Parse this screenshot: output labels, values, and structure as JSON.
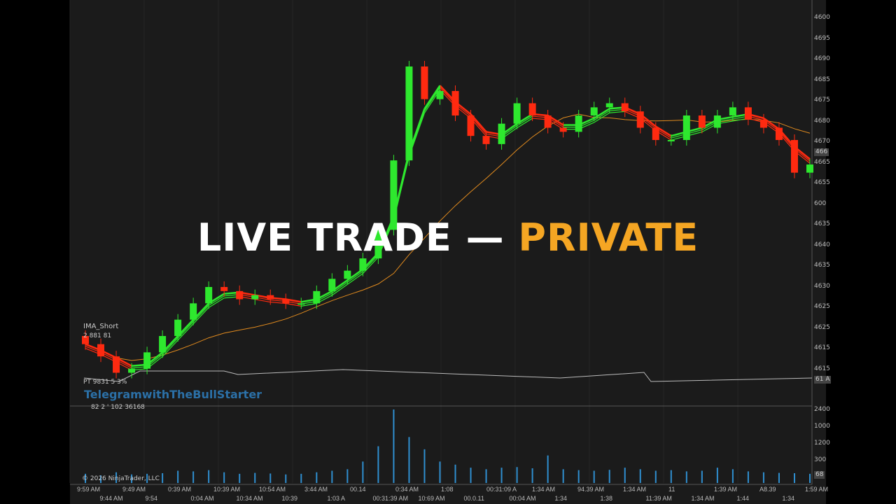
{
  "overlay": {
    "title_main": "LIVE TRADE —",
    "title_accent": "PRIVATE",
    "accent_color": "#f5a623"
  },
  "indicator_label": "IMA_Short",
  "indicator_value": "2 881 81",
  "info_line1": "PT 9831 5 3%",
  "info_line2": "82 2 ' 102 36168",
  "watermark": "TelegramwithTheBullStarter",
  "copyright": "© 2026 NinjaTrader, LLC",
  "colors": {
    "up": "#2ee82e",
    "down": "#ff2a10",
    "slow_ma": "#e08a1e",
    "volume": "#2f8fd0",
    "neutral": "#f5a623"
  },
  "chart_data": {
    "type": "candlestick",
    "price_axis_labels": [
      "4600",
      "4695",
      "4690",
      "4685",
      "4675",
      "4680",
      "4670",
      "4665",
      "4655",
      "600",
      "4635",
      "4640",
      "4635",
      "4630",
      "4625",
      "4625",
      "4615",
      "4615"
    ],
    "price_markers": [
      "466",
      "61 A"
    ],
    "volume_axis_labels": [
      "2400",
      "1000",
      "1200",
      "300"
    ],
    "volume_marker": "68",
    "time_labels": [
      "9:59 AM",
      "9:44 AM",
      "9:49 AM",
      "9:54",
      "0:39 AM",
      "0:04 AM",
      "10:39 AM",
      "10:34 AM",
      "10:54 AM",
      "10:39",
      "3:44 AM",
      "1:03 A",
      "00.14",
      "00:31:39 AM",
      "0:34 AM",
      "10:69 AM",
      "1:08",
      "00.0.11",
      "00:31:09 A",
      "00:04 AM",
      "1:34 AM",
      "1:34",
      "94.39 AM",
      "1:38",
      "1:34 AM",
      "11:39 AM",
      "11",
      "1:34 AM",
      "1:39 AM",
      "1:44",
      "A8.39",
      "1:34",
      "1:59 AM"
    ],
    "ylim": [
      4610,
      4700
    ],
    "close": [
      4620,
      4617,
      4613,
      4614,
      4618,
      4622,
      4626,
      4630,
      4634,
      4633,
      4631,
      4632,
      4631,
      4630,
      4630,
      4633,
      4636,
      4638,
      4641,
      4648,
      4665,
      4688,
      4680,
      4682,
      4676,
      4671,
      4669,
      4674,
      4679,
      4676,
      4673,
      4672,
      4676,
      4678,
      4679,
      4677,
      4673,
      4670,
      4670,
      4676,
      4673,
      4676,
      4678,
      4675,
      4673,
      4670,
      4662,
      4664
    ],
    "volume": [
      300,
      250,
      350,
      280,
      300,
      320,
      400,
      380,
      420,
      350,
      300,
      330,
      310,
      280,
      300,
      350,
      400,
      450,
      700,
      1200,
      2400,
      1500,
      1100,
      700,
      600,
      500,
      450,
      500,
      520,
      480,
      900,
      450,
      420,
      400,
      430,
      500,
      450,
      400,
      420,
      380,
      400,
      500,
      450,
      380,
      350,
      330,
      320,
      300
    ]
  }
}
